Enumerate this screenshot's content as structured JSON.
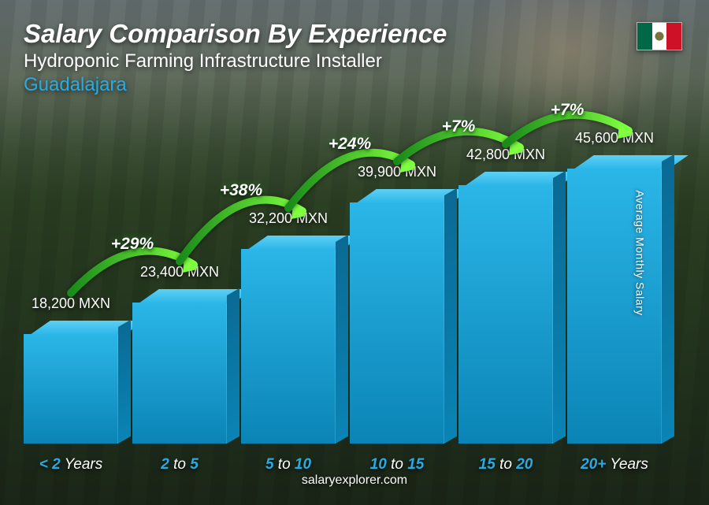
{
  "header": {
    "title": "Salary Comparison By Experience",
    "subtitle": "Hydroponic Farming Infrastructure Installer",
    "location": "Guadalajara",
    "location_color": "#29abe2"
  },
  "flag": {
    "left": "#006847",
    "center": "#ffffff",
    "right": "#ce1126"
  },
  "yaxis_label": "Average Monthly Salary",
  "chart": {
    "type": "bar",
    "max_value": 47000,
    "bar_colors": {
      "front_top": "#2bb6e8",
      "front_bottom": "#0a84b5",
      "top": "#5dd0f5",
      "side": "#0a6a94"
    },
    "xlabel_color": "#29abe2",
    "arc_gradient_start": "#1a8a1a",
    "arc_gradient_end": "#7fff3f",
    "bars": [
      {
        "label_pre": "< 2",
        "label_post": " Years",
        "value": 18200,
        "value_label": "18,200 MXN"
      },
      {
        "label_pre": "2",
        "label_mid": " to ",
        "label_post": "5",
        "value": 23400,
        "value_label": "23,400 MXN",
        "pct": "+29%"
      },
      {
        "label_pre": "5",
        "label_mid": " to ",
        "label_post": "10",
        "value": 32200,
        "value_label": "32,200 MXN",
        "pct": "+38%"
      },
      {
        "label_pre": "10",
        "label_mid": " to ",
        "label_post": "15",
        "value": 39900,
        "value_label": "39,900 MXN",
        "pct": "+24%"
      },
      {
        "label_pre": "15",
        "label_mid": " to ",
        "label_post": "20",
        "value": 42800,
        "value_label": "42,800 MXN",
        "pct": "+7%"
      },
      {
        "label_pre": "20+",
        "label_post": " Years",
        "value": 45600,
        "value_label": "45,600 MXN",
        "pct": "+7%"
      }
    ]
  },
  "footer": "salaryexplorer.com"
}
